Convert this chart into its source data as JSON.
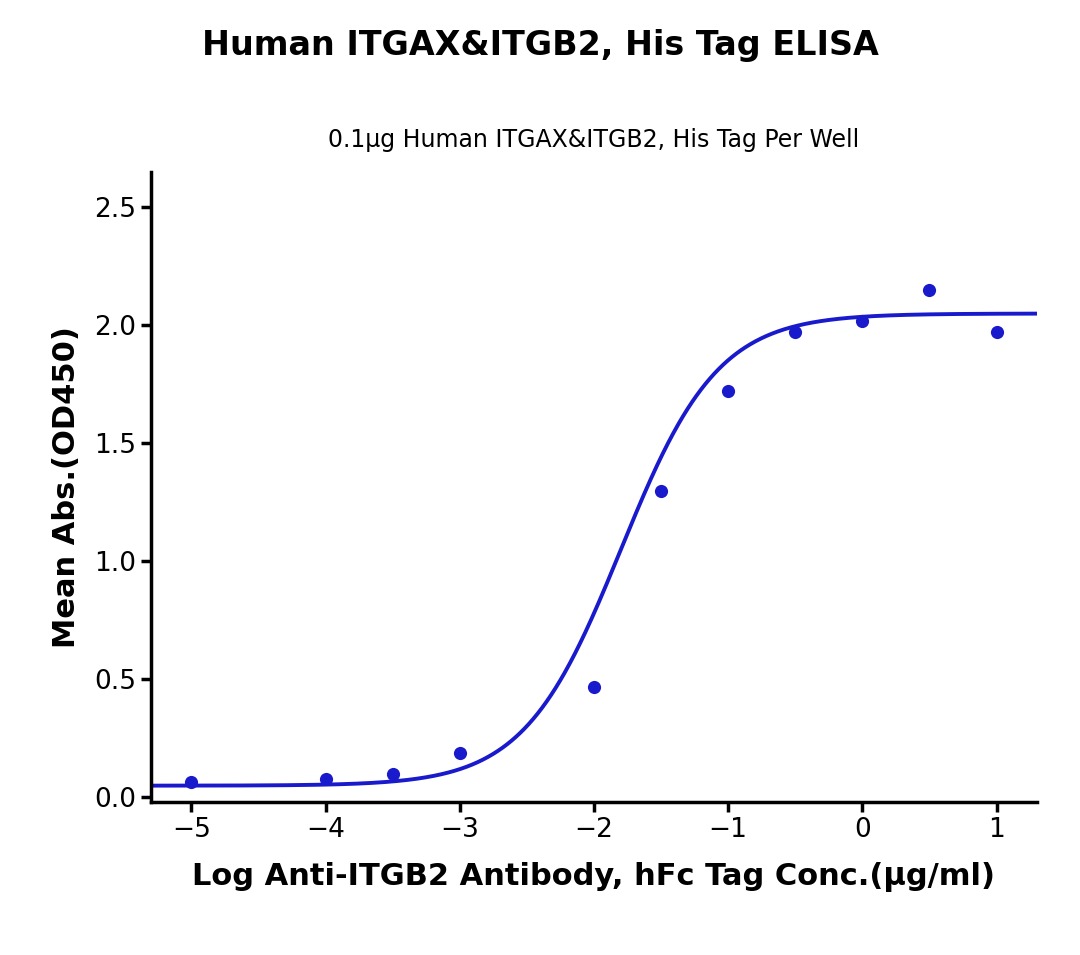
{
  "title": "Human ITGAX&ITGB2, His Tag ELISA",
  "subtitle": "0.1μg Human ITGAX&ITGB2, His Tag Per Well",
  "xlabel": "Log Anti-ITGB2 Antibody, hFc Tag Conc.(μg/ml)",
  "ylabel": "Mean Abs.(OD450)",
  "x_data": [
    -5,
    -4,
    -3.5,
    -3,
    -2,
    -1.5,
    -1,
    -0.5,
    0,
    0.5,
    1
  ],
  "y_data": [
    0.065,
    0.08,
    0.1,
    0.19,
    0.47,
    1.3,
    1.72,
    1.97,
    2.02,
    2.15,
    1.97
  ],
  "xlim": [
    -5.3,
    1.3
  ],
  "ylim": [
    -0.02,
    2.65
  ],
  "xticks": [
    -5,
    -4,
    -3,
    -2,
    -1,
    0,
    1
  ],
  "yticks": [
    0.0,
    0.5,
    1.0,
    1.5,
    2.0,
    2.5
  ],
  "line_color": "#1a1acd",
  "dot_color": "#1a1acd",
  "title_fontsize": 24,
  "subtitle_fontsize": 17,
  "axis_label_fontsize": 22,
  "tick_fontsize": 19,
  "background_color": "#ffffff",
  "line_width": 2.8,
  "dot_size": 90
}
